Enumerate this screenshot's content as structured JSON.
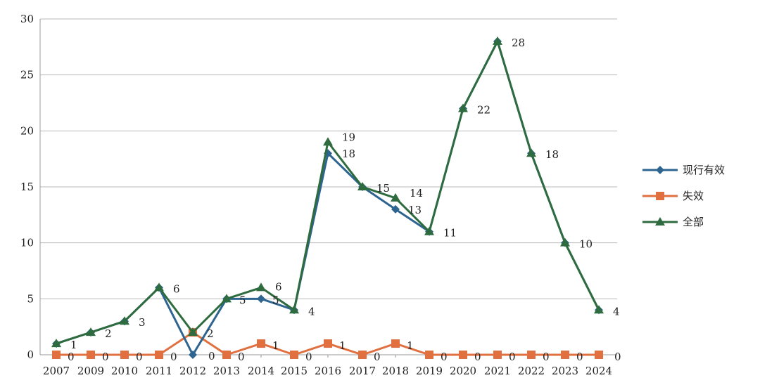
{
  "chart_data": {
    "type": "line",
    "title": "",
    "xlabel": "",
    "ylabel": "",
    "ylim": [
      0,
      30
    ],
    "yticks": [
      "0",
      "5",
      "10",
      "15",
      "20",
      "25",
      "30"
    ],
    "categories": [
      "2007",
      "2009",
      "2010",
      "2011",
      "2012",
      "2013",
      "2014",
      "2015",
      "2016",
      "2017",
      "2018",
      "2019",
      "2020",
      "2021",
      "2022",
      "2023",
      "2024"
    ],
    "grid": true,
    "legend_position": "right",
    "series": [
      {
        "name": "现行有效",
        "color": "#2e6590",
        "marker": "diamond",
        "values": [
          1,
          2,
          3,
          6,
          0,
          5,
          5,
          4,
          18,
          15,
          13,
          11,
          22,
          28,
          18,
          10,
          4
        ],
        "labels": [
          "",
          "",
          "",
          "",
          "0",
          "5",
          "5",
          "",
          "18",
          "",
          "13",
          "",
          "",
          "",
          "",
          "",
          ""
        ]
      },
      {
        "name": "失效",
        "color": "#e07040",
        "marker": "square",
        "values": [
          0,
          0,
          0,
          0,
          2,
          0,
          1,
          0,
          1,
          0,
          1,
          0,
          0,
          0,
          0,
          0,
          0
        ],
        "labels": [
          "0",
          "0",
          "0",
          "0",
          "2",
          "0",
          "1",
          "0",
          "1",
          "0",
          "1",
          "0",
          "0",
          "0",
          "0",
          "0",
          "0"
        ]
      },
      {
        "name": "全部",
        "color": "#2e6b3e",
        "marker": "triangle",
        "values": [
          1,
          2,
          3,
          6,
          2,
          5,
          6,
          4,
          19,
          15,
          14,
          11,
          22,
          28,
          18,
          10,
          4
        ],
        "labels": [
          "1",
          "2",
          "3",
          "6",
          "",
          "",
          "6",
          "4",
          "19",
          "15",
          "14",
          "11",
          "22",
          "28",
          "18",
          "10",
          "4"
        ]
      }
    ]
  }
}
